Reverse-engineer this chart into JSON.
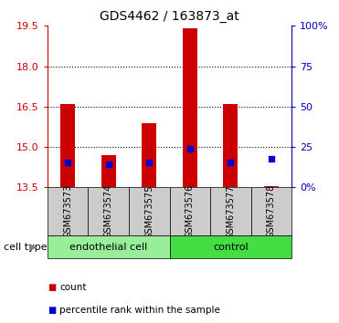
{
  "title": "GDS4462 / 163873_at",
  "samples": [
    "GSM673573",
    "GSM673574",
    "GSM673575",
    "GSM673576",
    "GSM673577",
    "GSM673578"
  ],
  "bar_bottom": 13.5,
  "bar_tops": [
    16.6,
    14.7,
    15.9,
    19.4,
    16.6,
    13.55
  ],
  "blue_markers": [
    14.42,
    14.37,
    14.42,
    14.92,
    14.42,
    14.55
  ],
  "ylim": [
    13.5,
    19.5
  ],
  "yticks_left": [
    13.5,
    15.0,
    16.5,
    18.0,
    19.5
  ],
  "yticks_right_vals": [
    0,
    25,
    50,
    75,
    100
  ],
  "bar_color": "#cc0000",
  "blue_color": "#0000cc",
  "tick_color_left": "#cc0000",
  "tick_color_right": "#0000bb",
  "grid_yticks": [
    15.0,
    16.5,
    18.0
  ],
  "cell_type_groups": [
    {
      "label": "endothelial cell",
      "start": 0,
      "end": 3,
      "color": "#99ee99"
    },
    {
      "label": "control",
      "start": 3,
      "end": 6,
      "color": "#44dd44"
    }
  ],
  "cell_type_label": "cell type",
  "legend_count": "count",
  "legend_pct": "percentile rank within the sample",
  "bar_width": 0.35,
  "background_color": "#ffffff",
  "plot_bg": "#ffffff",
  "gray_box_color": "#cccccc"
}
